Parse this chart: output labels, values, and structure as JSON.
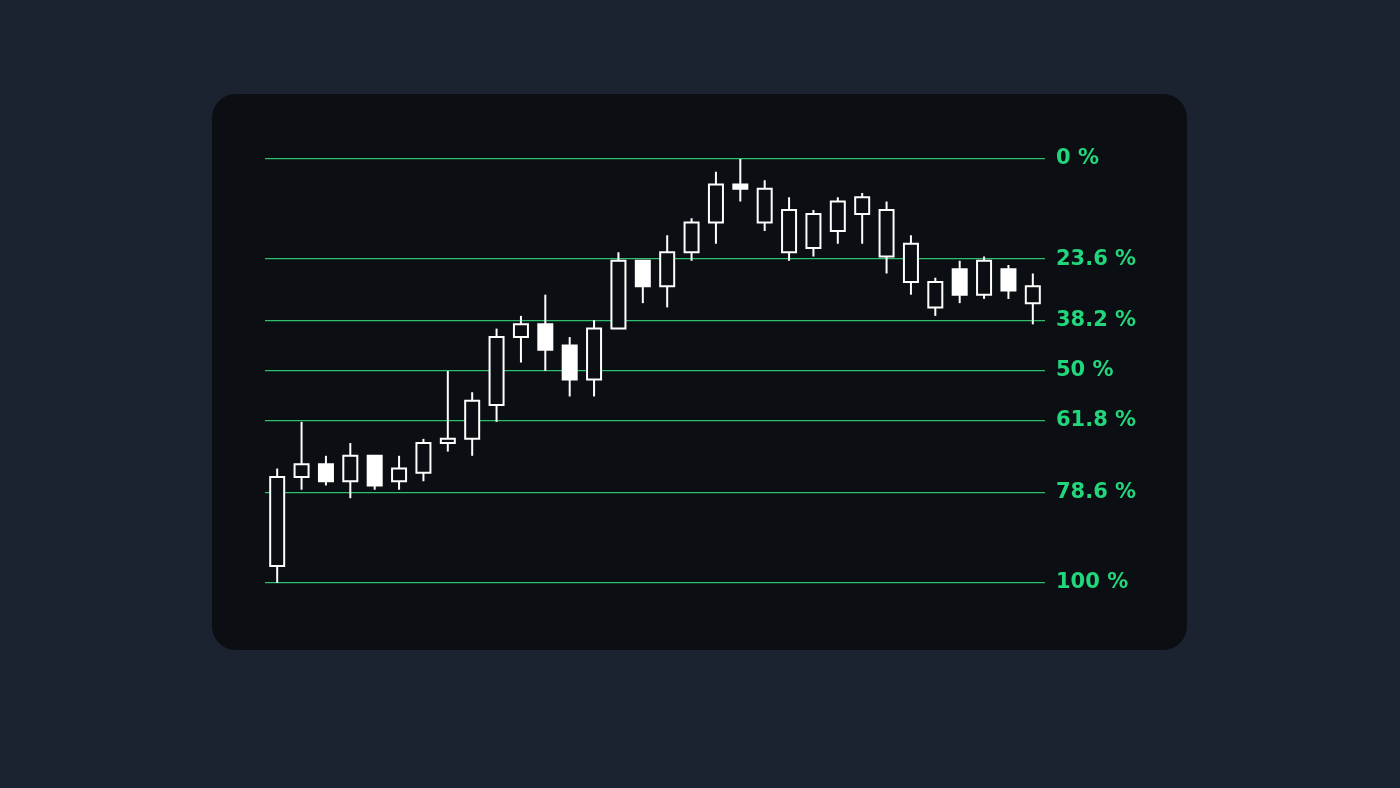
{
  "chart_data": {
    "type": "candlestick",
    "color": "#ffffff",
    "grid": "y",
    "categories": [
      null,
      null,
      null,
      null,
      null,
      null,
      null,
      null,
      null,
      null,
      null,
      null,
      null,
      null,
      null,
      null,
      null,
      null,
      null,
      null,
      null,
      null,
      null,
      null,
      null,
      null,
      null,
      null,
      null,
      null,
      null,
      null
    ],
    "ylim": [
      100,
      0
    ],
    "yticks": [
      {
        "value": 0,
        "label": "0 %"
      },
      {
        "value": 23.6,
        "label": "23.6 %"
      },
      {
        "value": 38.2,
        "label": "38.2 %"
      },
      {
        "value": 50,
        "label": "50 %"
      },
      {
        "value": 61.8,
        "label": "61.8 %"
      },
      {
        "value": 78.6,
        "label": "78.6 %"
      },
      {
        "value": 100,
        "label": "100 %"
      }
    ],
    "ohlc": [
      [
        96,
        100,
        73,
        75
      ],
      [
        75,
        78,
        62,
        72
      ],
      [
        72,
        77,
        70,
        76
      ],
      [
        76,
        80,
        67,
        70
      ],
      [
        70,
        78,
        70,
        77
      ],
      [
        76,
        78,
        70,
        73
      ],
      [
        74,
        76,
        66,
        67
      ],
      [
        67,
        69,
        50,
        66
      ],
      [
        66,
        70,
        55,
        57
      ],
      [
        58,
        62,
        40,
        42
      ],
      [
        42,
        48,
        37,
        39
      ],
      [
        39,
        50,
        32,
        45
      ],
      [
        44,
        56,
        42,
        52
      ],
      [
        52,
        56,
        38,
        40
      ],
      [
        40,
        40,
        22,
        24
      ],
      [
        24,
        34,
        24,
        30
      ],
      [
        30,
        35,
        18,
        22
      ],
      [
        22,
        24,
        14,
        15
      ],
      [
        15,
        20,
        3,
        6
      ],
      [
        6,
        10,
        0,
        7
      ],
      [
        15,
        17,
        5,
        7
      ],
      [
        22,
        24,
        9,
        12
      ],
      [
        21,
        23,
        12,
        13
      ],
      [
        17,
        20,
        9,
        10
      ],
      [
        13,
        20,
        8,
        9
      ],
      [
        23,
        27,
        10,
        12
      ],
      [
        29,
        32,
        18,
        20
      ],
      [
        35,
        37,
        28,
        29
      ],
      [
        26,
        34,
        24,
        32
      ],
      [
        32,
        33,
        23,
        24
      ],
      [
        26,
        33,
        25,
        31
      ],
      [
        34,
        39,
        27,
        30
      ]
    ]
  }
}
